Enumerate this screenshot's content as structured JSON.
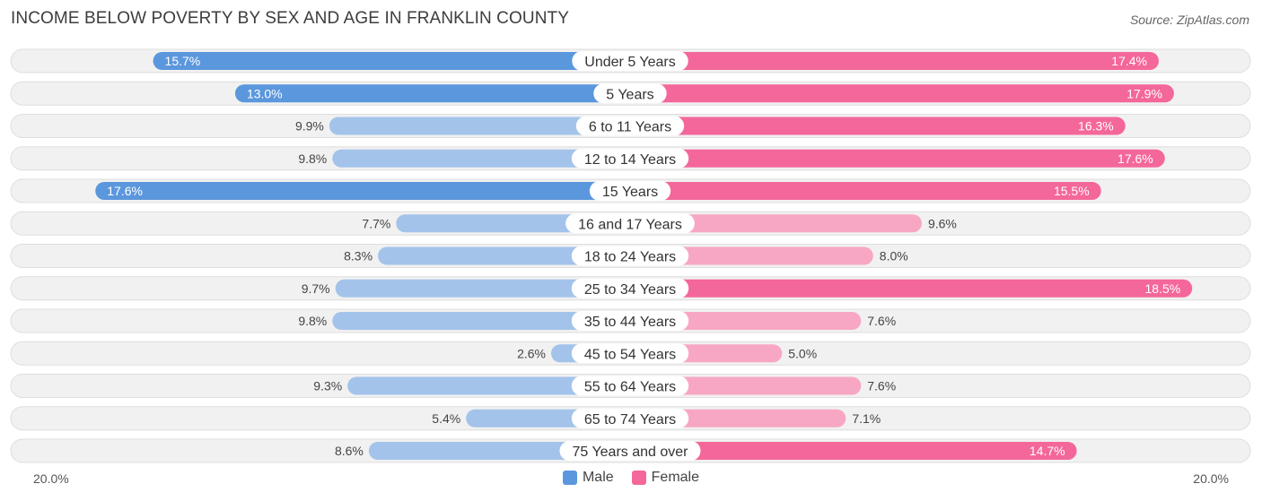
{
  "title": "INCOME BELOW POVERTY BY SEX AND AGE IN FRANKLIN COUNTY",
  "source": "Source: ZipAtlas.com",
  "axis": {
    "left_label": "20.0%",
    "right_label": "20.0%"
  },
  "legend": {
    "male": "Male",
    "female": "Female"
  },
  "colors": {
    "male_strong": "#5b97dc",
    "male_light": "#a3c3ea",
    "female_strong": "#f4679a",
    "female_light": "#f7a7c3",
    "row_bg": "#f1f1f1",
    "row_border": "#dedede"
  },
  "chart_data": {
    "type": "bar",
    "orientation": "horizontal-diverging",
    "title": "INCOME BELOW POVERTY BY SEX AND AGE IN FRANKLIN COUNTY",
    "categories": [
      "Under 5 Years",
      "5 Years",
      "6 to 11 Years",
      "12 to 14 Years",
      "15 Years",
      "16 and 17 Years",
      "18 to 24 Years",
      "25 to 34 Years",
      "35 to 44 Years",
      "45 to 54 Years",
      "55 to 64 Years",
      "65 to 74 Years",
      "75 Years and over"
    ],
    "series": [
      {
        "name": "Male",
        "values": [
          15.7,
          13.0,
          9.9,
          9.8,
          17.6,
          7.7,
          8.3,
          9.7,
          9.8,
          2.6,
          9.3,
          5.4,
          8.6
        ]
      },
      {
        "name": "Female",
        "values": [
          17.4,
          17.9,
          16.3,
          17.6,
          15.5,
          9.6,
          8.0,
          18.5,
          7.6,
          5.0,
          7.6,
          7.1,
          14.7
        ]
      }
    ],
    "xlim": [
      -20,
      20
    ],
    "value_suffix": "%"
  }
}
